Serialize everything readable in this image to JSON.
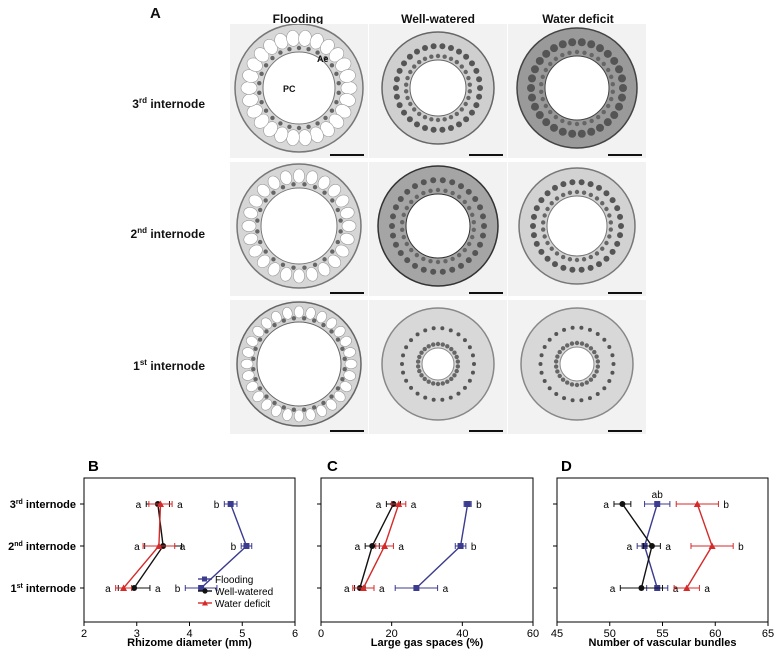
{
  "panel_a": {
    "letter": "A",
    "columns": [
      "Flooding",
      "Well-watered",
      "Water deficit"
    ],
    "rows": [
      {
        "ord": "3",
        "sup": "rd",
        "label": " internode"
      },
      {
        "ord": "2",
        "sup": "nd",
        "label": " internode"
      },
      {
        "ord": "1",
        "sup": "st",
        "label": " internode"
      }
    ],
    "annotations": {
      "ae": "Ae",
      "pc": "PC"
    }
  },
  "colors": {
    "flooding": "#3b3b8f",
    "well_watered": "#111111",
    "water_deficit": "#d42a2a"
  },
  "chart_data": [
    {
      "letter": "B",
      "type": "line",
      "xlabel": "Rhizome diameter (mm)",
      "xlim": [
        2,
        6
      ],
      "xticks": [
        2,
        3,
        4,
        5,
        6
      ],
      "categories": [
        "3rd internode",
        "2nd internode",
        "1st internode"
      ],
      "legend": "inside-bottom-right",
      "series": [
        {
          "name": "Flooding",
          "color": "#3b3b8f",
          "marker": "square",
          "values": [
            4.78,
            5.08,
            4.22
          ],
          "err": [
            0.12,
            0.1,
            0.3
          ],
          "letters": [
            "b",
            "b",
            "b"
          ],
          "letter_side": [
            "left",
            "left",
            "left"
          ]
        },
        {
          "name": "Well-watered",
          "color": "#111111",
          "marker": "circle",
          "values": [
            3.4,
            3.5,
            2.95
          ],
          "err": [
            0.22,
            0.35,
            0.3
          ],
          "letters": [
            "a",
            "a",
            "a"
          ],
          "letter_side": [
            "left",
            "left",
            "right"
          ]
        },
        {
          "name": "Water deficit",
          "color": "#d42a2a",
          "marker": "triangle",
          "values": [
            3.45,
            3.42,
            2.75
          ],
          "err": [
            0.22,
            0.3,
            0.15
          ],
          "letters": [
            "a",
            "a",
            "a"
          ],
          "letter_side": [
            "right",
            "right",
            "left"
          ]
        }
      ]
    },
    {
      "letter": "C",
      "type": "line",
      "xlabel": "Large gas spaces (%)",
      "xlim": [
        0,
        60
      ],
      "xticks": [
        0,
        20,
        40,
        60
      ],
      "categories": [
        "3rd internode",
        "2nd internode",
        "1st internode"
      ],
      "series": [
        {
          "name": "Flooding",
          "color": "#3b3b8f",
          "marker": "square",
          "values": [
            41.5,
            39.5,
            27
          ],
          "err": [
            1,
            1.5,
            6
          ],
          "letters": [
            "b",
            "b",
            "a"
          ],
          "letter_side": [
            "right",
            "right",
            "right"
          ]
        },
        {
          "name": "Well-watered",
          "color": "#111111",
          "marker": "circle",
          "values": [
            20.5,
            14.5,
            11
          ],
          "err": [
            2,
            2,
            1.5
          ],
          "letters": [
            "a",
            "a",
            "a"
          ],
          "letter_side": [
            "left",
            "left",
            "left"
          ]
        },
        {
          "name": "Water deficit",
          "color": "#d42a2a",
          "marker": "triangle",
          "values": [
            22,
            18,
            12
          ],
          "err": [
            2,
            2.5,
            3
          ],
          "letters": [
            "a",
            "a",
            "a"
          ],
          "letter_side": [
            "right",
            "right",
            "right"
          ]
        }
      ]
    },
    {
      "letter": "D",
      "type": "line",
      "xlabel": "Number of vascular bundles",
      "xlim": [
        45,
        65
      ],
      "xticks": [
        45,
        50,
        55,
        60,
        65
      ],
      "categories": [
        "3rd internode",
        "2nd internode",
        "1st internode"
      ],
      "series": [
        {
          "name": "Flooding",
          "color": "#3b3b8f",
          "marker": "square",
          "values": [
            54.5,
            53.3,
            54.5
          ],
          "err": [
            1.2,
            0.7,
            1
          ],
          "letters": [
            "ab",
            "a",
            "a"
          ],
          "letter_side": [
            "above",
            "left",
            "right"
          ]
        },
        {
          "name": "Well-watered",
          "color": "#111111",
          "marker": "circle",
          "values": [
            51.2,
            54,
            53
          ],
          "err": [
            0.8,
            0.8,
            2
          ],
          "letters": [
            "a",
            "a",
            "a"
          ],
          "letter_side": [
            "left",
            "right",
            "left"
          ]
        },
        {
          "name": "Water deficit",
          "color": "#d42a2a",
          "marker": "triangle",
          "values": [
            58.3,
            59.7,
            57.3
          ],
          "err": [
            2,
            2,
            1.2
          ],
          "letters": [
            "b",
            "b",
            "a"
          ],
          "letter_side": [
            "right",
            "right",
            "right"
          ]
        }
      ]
    }
  ]
}
